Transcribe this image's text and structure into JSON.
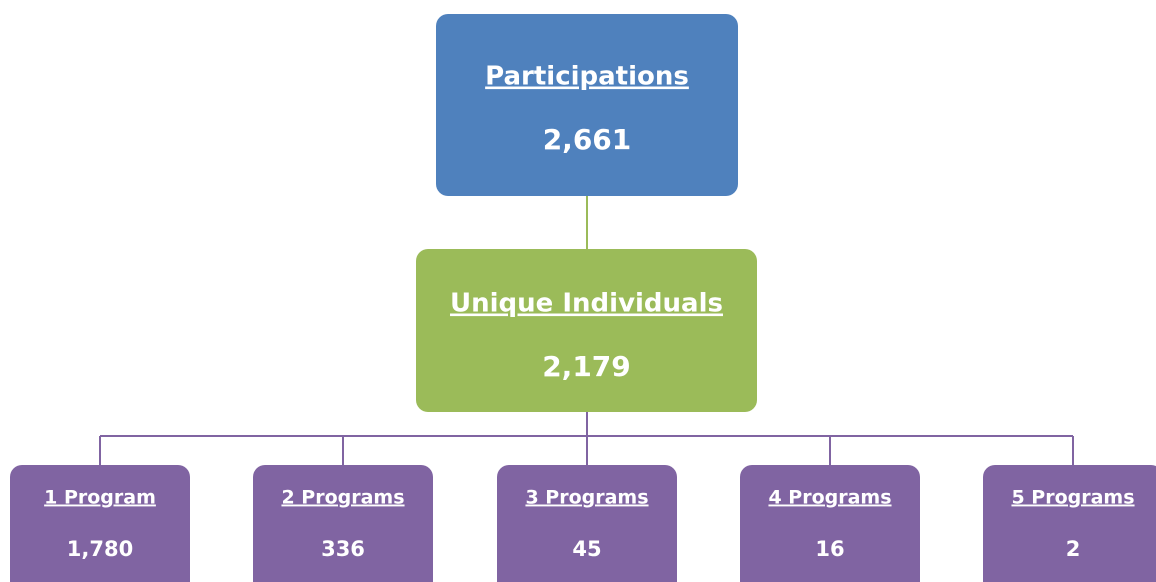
{
  "nodes": [
    {
      "label": "Participations",
      "value": "2,661"
    },
    {
      "label": "Unique Individuals",
      "value": "2,179"
    },
    {
      "label": "1 Program",
      "value": "1,780"
    },
    {
      "label": "2 Programs",
      "value": "336"
    },
    {
      "label": "3 Programs",
      "value": "45"
    },
    {
      "label": "4 Programs",
      "value": "16"
    },
    {
      "label": "5 Programs",
      "value": "2"
    }
  ]
}
